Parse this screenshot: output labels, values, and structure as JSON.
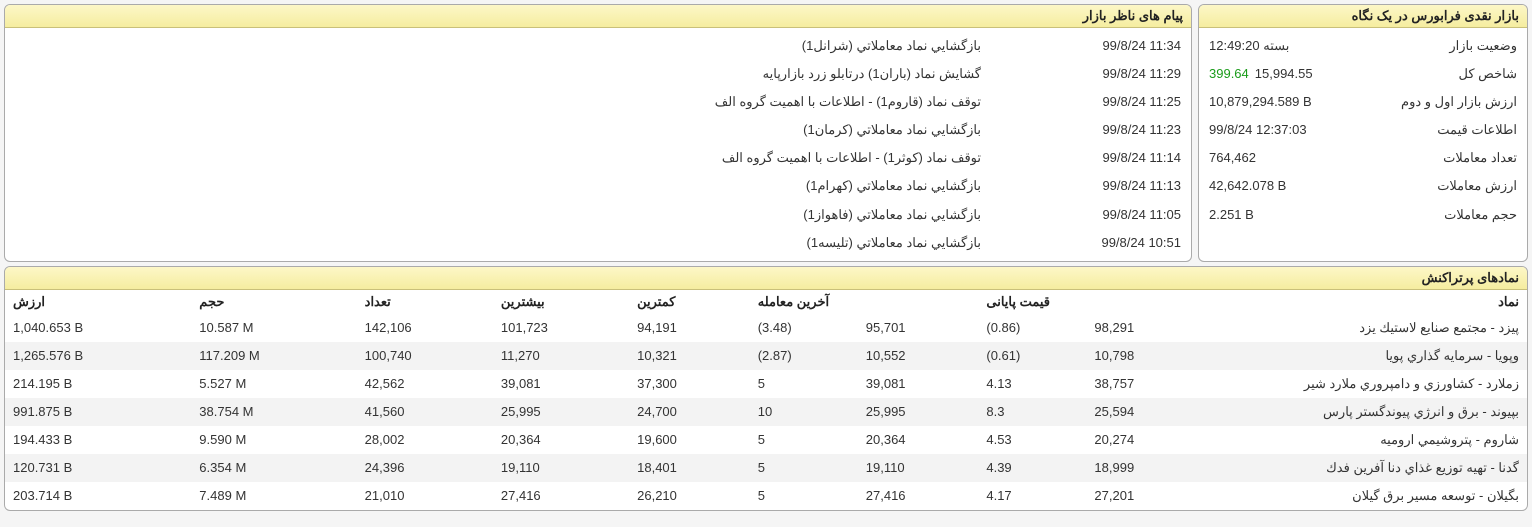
{
  "overview": {
    "title": "بازار نقدی فرابورس در یک نگاه",
    "rows": [
      {
        "label": "وضعیت بازار",
        "value": "بسته 12:49:20"
      },
      {
        "label": "شاخص کل",
        "value": "15,994.55",
        "delta": "399.64",
        "delta_sign": "pos"
      },
      {
        "label": "ارزش بازار اول و دوم",
        "value": "10,879,294.589 B"
      },
      {
        "label": "اطلاعات قیمت",
        "value": "99/8/24 12:37:03"
      },
      {
        "label": "تعداد معاملات",
        "value": "764,462"
      },
      {
        "label": "ارزش معاملات",
        "value": "42,642.078 B"
      },
      {
        "label": "حجم معاملات",
        "value": "2.251 B"
      }
    ]
  },
  "messages": {
    "title": "پیام های ناظر بازار",
    "rows": [
      {
        "time": "99/8/24 11:34",
        "text": "بازگشايي نماد معاملاتي (شرانل1)"
      },
      {
        "time": "99/8/24 11:29",
        "text": "گشايش نماد (باران1) درتابلو زرد بازارپايه"
      },
      {
        "time": "99/8/24 11:25",
        "text": "توقف نماد (قاروم1) - اطلاعات با اهميت گروه الف"
      },
      {
        "time": "99/8/24 11:23",
        "text": "بازگشايي نماد معاملاتي (كرمان1)"
      },
      {
        "time": "99/8/24 11:14",
        "text": "توقف نماد (كوثر1) - اطلاعات با اهميت گروه الف"
      },
      {
        "time": "99/8/24 11:13",
        "text": "بازگشايي نماد معاملاتي (كهرام1)"
      },
      {
        "time": "99/8/24 11:05",
        "text": "بازگشايي نماد معاملاتي (فاهواز1)"
      },
      {
        "time": "99/8/24 10:51",
        "text": "بازگشايي نماد معاملاتي (تليسه1)"
      }
    ]
  },
  "symbols": {
    "title": "نمادهای پرتراکنش",
    "headers": {
      "symbol": "نماد",
      "final_price": "قیمت پایانی",
      "last_trade": "آخرین معامله",
      "low": "کمترین",
      "high": "بیشترین",
      "count": "تعداد",
      "volume": "حجم",
      "value": "ارزش"
    },
    "rows": [
      {
        "symbol": "پيزد - مجتمع صنايع لاستيك يزد",
        "final": "98,291",
        "final_pct": "(0.86)",
        "final_sign": "neg",
        "last": "95,701",
        "last_pct": "(3.48)",
        "last_sign": "neg",
        "low": "94,191",
        "high": "101,723",
        "count": "142,106",
        "volume": "10.587 M",
        "value": "1,040.653 B"
      },
      {
        "symbol": "وپويا - سرمايه گذاري پويا",
        "final": "10,798",
        "final_pct": "(0.61)",
        "final_sign": "neg",
        "last": "10,552",
        "last_pct": "(2.87)",
        "last_sign": "neg",
        "low": "10,321",
        "high": "11,270",
        "count": "100,740",
        "volume": "117.209 M",
        "value": "1,265.576 B"
      },
      {
        "symbol": "زملارد - كشاورزي و دامپروري ملارد شير",
        "final": "38,757",
        "final_pct": "4.13",
        "final_sign": "pos",
        "last": "39,081",
        "last_pct": "5",
        "last_sign": "pos",
        "low": "37,300",
        "high": "39,081",
        "count": "42,562",
        "volume": "5.527 M",
        "value": "214.195 B"
      },
      {
        "symbol": "بپيوند - برق و انرژي پيوندگستر پارس",
        "final": "25,594",
        "final_pct": "8.3",
        "final_sign": "pos",
        "last": "25,995",
        "last_pct": "10",
        "last_sign": "pos",
        "low": "24,700",
        "high": "25,995",
        "count": "41,560",
        "volume": "38.754 M",
        "value": "991.875 B"
      },
      {
        "symbol": "شاروم - پتروشيمي اروميه",
        "final": "20,274",
        "final_pct": "4.53",
        "final_sign": "pos",
        "last": "20,364",
        "last_pct": "5",
        "last_sign": "pos",
        "low": "19,600",
        "high": "20,364",
        "count": "28,002",
        "volume": "9.590 M",
        "value": "194.433 B"
      },
      {
        "symbol": "گدنا - تهيه توزيع غذاي دنا آفرين فدك",
        "final": "18,999",
        "final_pct": "4.39",
        "final_sign": "pos",
        "last": "19,110",
        "last_pct": "5",
        "last_sign": "pos",
        "low": "18,401",
        "high": "19,110",
        "count": "24,396",
        "volume": "6.354 M",
        "value": "120.731 B"
      },
      {
        "symbol": "بگيلان - توسعه مسير برق گيلان",
        "final": "27,201",
        "final_pct": "4.17",
        "final_sign": "pos",
        "last": "27,416",
        "last_pct": "5",
        "last_sign": "pos",
        "low": "26,210",
        "high": "27,416",
        "count": "21,010",
        "volume": "7.489 M",
        "value": "203.714 B"
      }
    ]
  }
}
